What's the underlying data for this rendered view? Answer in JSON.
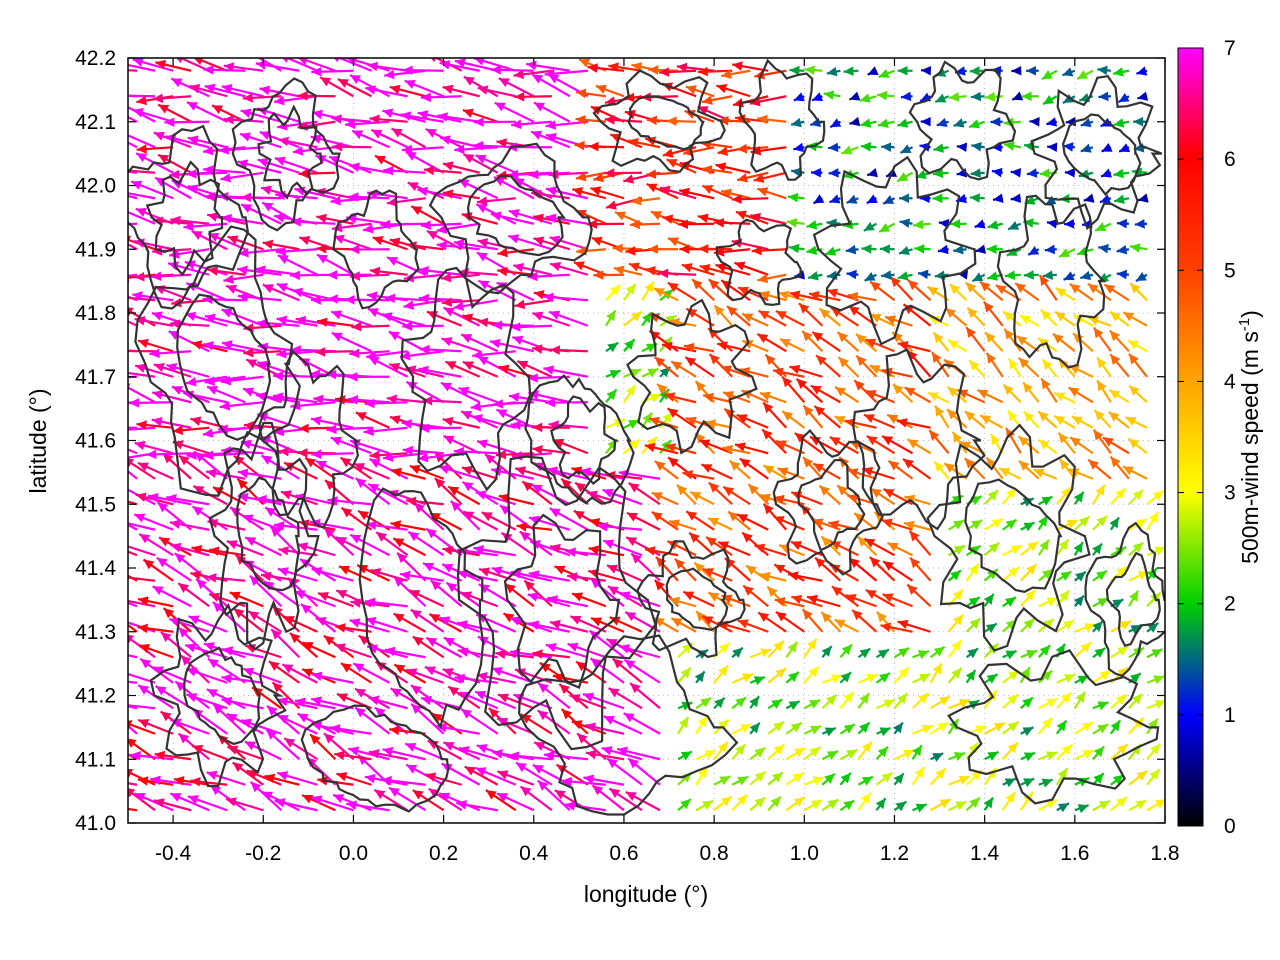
{
  "chart_data": {
    "type": "vector-field",
    "xlabel": "longitude (°)",
    "ylabel": "latitude (°)",
    "xlim": [
      -0.5,
      1.8
    ],
    "ylim": [
      41.0,
      42.2
    ],
    "xticks": [
      "-0.4",
      "-0.2",
      "0.0",
      "0.2",
      "0.4",
      "0.6",
      "0.8",
      "1.0",
      "1.2",
      "1.4",
      "1.6",
      "1.8"
    ],
    "xtick_values": [
      -0.4,
      -0.2,
      0.0,
      0.2,
      0.4,
      0.6,
      0.8,
      1.0,
      1.2,
      1.4,
      1.6,
      1.8
    ],
    "yticks": [
      "41.0",
      "41.1",
      "41.2",
      "41.3",
      "41.4",
      "41.5",
      "41.6",
      "41.7",
      "41.8",
      "41.9",
      "42.0",
      "42.1",
      "42.2"
    ],
    "ytick_values": [
      41.0,
      41.1,
      41.2,
      41.3,
      41.4,
      41.5,
      41.6,
      41.7,
      41.8,
      41.9,
      42.0,
      42.1,
      42.2
    ],
    "grid": true,
    "colorbar": {
      "label": "500m-wind speed (m s",
      "label_sup": "-1",
      "label_end": ")",
      "range": [
        0,
        7
      ],
      "ticks": [
        "0",
        "1",
        "2",
        "3",
        "4",
        "5",
        "6",
        "7"
      ],
      "tick_values": [
        0,
        1,
        2,
        3,
        4,
        5,
        6,
        7
      ],
      "colors": [
        "#000000",
        "#0000ff",
        "#00ff00",
        "#ffff00",
        "#ffa500",
        "#ff0000",
        "#ff00ff"
      ]
    },
    "series": [
      {
        "type": "vectors",
        "grid_spacing_deg": 0.04,
        "wind_regions": [
          {
            "lon": [
              -0.5,
              0.55
            ],
            "lat": [
              41.55,
              42.2
            ],
            "speed": 7.0,
            "direction_deg": 170
          },
          {
            "lon": [
              -0.5,
              0.7
            ],
            "lat": [
              41.0,
              41.55
            ],
            "speed": 6.8,
            "direction_deg": 155
          },
          {
            "lon": [
              0.55,
              1.0
            ],
            "lat": [
              41.85,
              42.2
            ],
            "speed": 5.5,
            "direction_deg": 175
          },
          {
            "lon": [
              0.7,
              1.3
            ],
            "lat": [
              41.3,
              41.85
            ],
            "speed": 5.0,
            "direction_deg": 150
          },
          {
            "lon": [
              1.3,
              1.8
            ],
            "lat": [
              41.5,
              41.85
            ],
            "speed": 4.0,
            "direction_deg": 140
          },
          {
            "lon": [
              1.0,
              1.8
            ],
            "lat": [
              41.85,
              42.2
            ],
            "speed": 1.5,
            "direction_deg": 190
          },
          {
            "lon": [
              1.3,
              1.8
            ],
            "lat": [
              41.0,
              41.5
            ],
            "speed": 2.5,
            "direction_deg": 40
          }
        ]
      },
      {
        "type": "contours",
        "color": "#333333",
        "description": "terrain elevation contours"
      }
    ]
  }
}
